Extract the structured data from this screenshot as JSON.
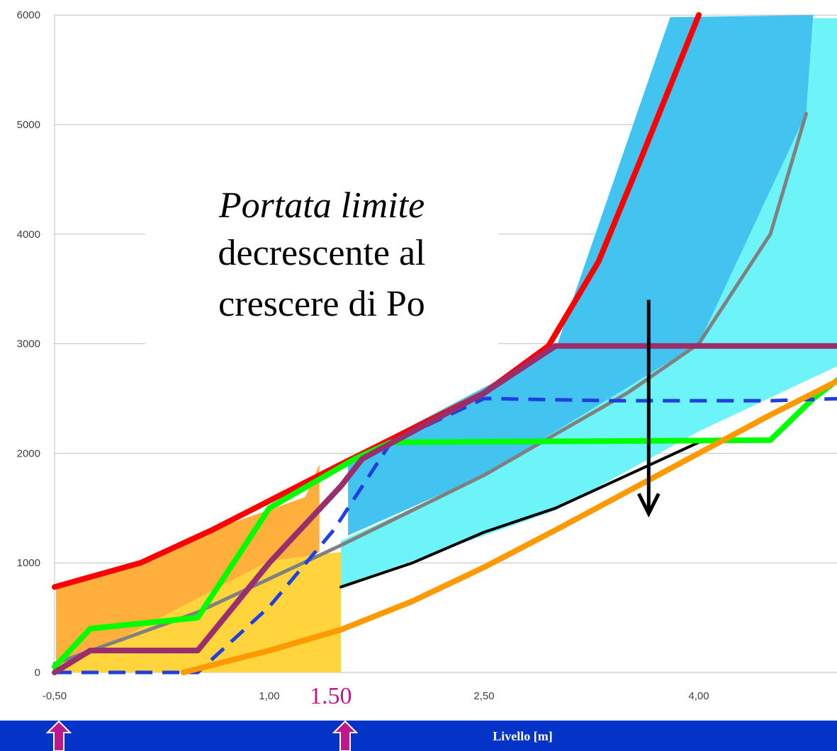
{
  "chart_data": {
    "type": "area",
    "xlabel": "Livello [m]",
    "ylabel": "",
    "xlim": [
      -0.5,
      5.3
    ],
    "ylim": [
      0,
      6000
    ],
    "x_tick_labels": [
      "-0,50",
      "1,00",
      "2,50",
      "4,00"
    ],
    "x_tick_values": [
      -0.5,
      1.0,
      2.5,
      4.0
    ],
    "y_ticks": [
      0,
      1000,
      2000,
      3000,
      4000,
      5000,
      6000
    ],
    "grid": "horizontal",
    "annotation": {
      "line1": "Portata limite",
      "line2": "decrescente al",
      "line3": "crescere di Po"
    },
    "marker_label": "1.50",
    "areas": [
      {
        "color": "#ffb03c",
        "top": [
          [
            -0.49,
            780
          ],
          [
            0.05,
            980
          ],
          [
            0.6,
            1300
          ],
          [
            1.25,
            1600
          ],
          [
            1.35,
            1900
          ]
        ],
        "bottom": [
          [
            1.35,
            1100
          ],
          [
            -0.49,
            0
          ]
        ]
      },
      {
        "color": "#ffd43c",
        "top": [
          [
            -0.49,
            0
          ],
          [
            1.0,
            1020
          ],
          [
            1.5,
            1100
          ]
        ],
        "bottom": [
          [
            1.5,
            0
          ],
          [
            -0.49,
            0
          ]
        ]
      },
      {
        "color": "#42c3f0",
        "top": [
          [
            1.55,
            1950
          ],
          [
            2.5,
            2600
          ],
          [
            3.0,
            2950
          ],
          [
            3.8,
            5980
          ],
          [
            4.8,
            6000
          ]
        ],
        "bottom": [
          [
            4.75,
            5100
          ],
          [
            4.0,
            3000
          ],
          [
            2.5,
            1800
          ],
          [
            1.55,
            1250
          ]
        ]
      },
      {
        "color": "#6cf4f8",
        "top": [
          [
            1.5,
            1200
          ],
          [
            2.5,
            1800
          ],
          [
            4.0,
            3000
          ],
          [
            4.75,
            5100
          ],
          [
            4.8,
            5970
          ],
          [
            5.3,
            5970
          ]
        ],
        "bottom": [
          [
            5.3,
            3000
          ],
          [
            4.0,
            2200
          ],
          [
            3.0,
            1480
          ],
          [
            1.5,
            790
          ]
        ]
      }
    ],
    "series": [
      {
        "color": "#ff0000",
        "style": "solid",
        "x": [
          -0.5,
          0.1,
          0.6,
          1.5,
          2.5,
          2.95,
          3.3,
          3.6,
          4.0
        ],
        "y": [
          780,
          1000,
          1300,
          1900,
          2550,
          2980,
          3750,
          4700,
          6000
        ]
      },
      {
        "color": "#808080",
        "style": "solid",
        "x": [
          -0.5,
          0.5,
          1.5,
          2.5,
          3.5,
          4.0,
          4.5,
          4.75
        ],
        "y": [
          80,
          550,
          1160,
          1800,
          2550,
          3000,
          4000,
          5100
        ]
      },
      {
        "color": "#000000",
        "style": "solid",
        "x": [
          1.5,
          2.0,
          2.5,
          3.0,
          3.5,
          4.0
        ],
        "y": [
          780,
          1000,
          1280,
          1500,
          1800,
          2100
        ]
      },
      {
        "color": "#00ff00",
        "style": "solid",
        "x": [
          -0.5,
          -0.25,
          0.5,
          1.0,
          1.6,
          1.85,
          4.5,
          4.8,
          5.3
        ],
        "y": [
          50,
          400,
          500,
          1500,
          1950,
          2100,
          2120,
          2500,
          3000
        ]
      },
      {
        "color": "#1f3fe0",
        "style": "dashed",
        "x": [
          -0.5,
          0.3,
          0.5,
          1.0,
          1.45,
          1.85,
          2.5,
          3.4,
          4.5,
          5.0,
          5.3
        ],
        "y": [
          0,
          0,
          0,
          600,
          1300,
          2100,
          2500,
          2480,
          2480,
          2500,
          3000
        ]
      },
      {
        "color": "#ff9900",
        "style": "solid",
        "x": [
          0.4,
          1.0,
          1.5,
          2.0,
          2.5,
          3.0,
          3.5,
          4.0,
          4.5,
          5.0,
          5.3
        ],
        "y": [
          0,
          200,
          390,
          650,
          960,
          1300,
          1650,
          2000,
          2350,
          2680,
          3000
        ]
      },
      {
        "color": "#9a2d6b",
        "style": "solid",
        "x": [
          -0.5,
          -0.25,
          0.5,
          1.0,
          1.5,
          1.65,
          2.5,
          3.0,
          5.3,
          5.5
        ],
        "y": [
          0,
          200,
          200,
          1000,
          1700,
          1950,
          2550,
          2980,
          2980,
          3300
        ]
      }
    ],
    "arrows": [
      {
        "color": "#000000",
        "direction": "down",
        "x": 3.65,
        "from": 3400,
        "to": 1450
      }
    ]
  },
  "footer": {
    "label": "Livello [m]",
    "band_color": "#0433c8",
    "marker_arrow_color": "#c0178c",
    "marker_arrow_values": [
      -0.5,
      1.5
    ]
  }
}
